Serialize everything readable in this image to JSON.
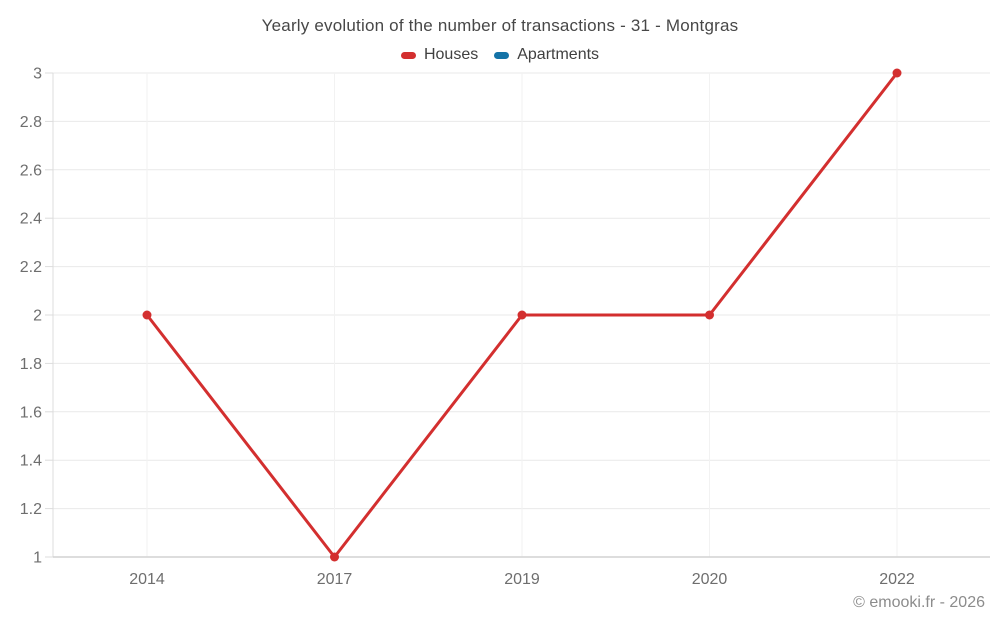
{
  "footer": "© emooki.fr - 2026",
  "chart_data": {
    "type": "line",
    "title": "Yearly evolution of the number of transactions - 31 - Montgras",
    "xlabel": "",
    "ylabel": "",
    "categories": [
      "2014",
      "2017",
      "2019",
      "2020",
      "2022"
    ],
    "series": [
      {
        "name": "Houses",
        "color": "#d32f2f",
        "values": [
          2,
          1,
          2,
          2,
          3
        ]
      },
      {
        "name": "Apartments",
        "color": "#1473a7",
        "values": []
      }
    ],
    "ylim": [
      1,
      3
    ],
    "y_ticks": [
      "1",
      "1.2",
      "1.4",
      "1.6",
      "1.8",
      "2",
      "2.2",
      "2.4",
      "2.6",
      "2.8",
      "3"
    ],
    "grid": true,
    "legend_position": "top",
    "marker": "circle",
    "colors": {
      "grid_h": "#e9e9e9",
      "grid_v": "#f2f2f2",
      "axis": "#dcdcdc",
      "tick_text": "#6e6e6e",
      "title_text": "#474747"
    }
  }
}
